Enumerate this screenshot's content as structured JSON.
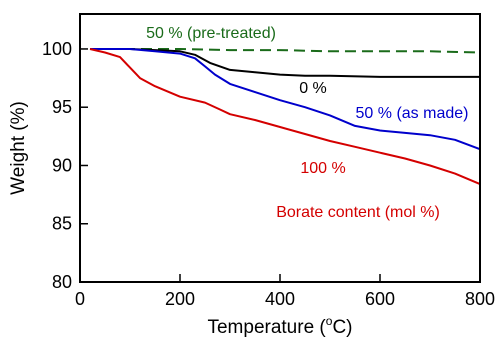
{
  "chart_data": {
    "type": "line",
    "xlabel": "Temperature (°C)",
    "xlabel_parts": {
      "main": "Temperature (",
      "sup": "o",
      "unit": "C)"
    },
    "ylabel": "Weight (%)",
    "xlim": [
      0,
      800
    ],
    "ylim": [
      80,
      103
    ],
    "xticks": [
      0,
      200,
      400,
      600,
      800
    ],
    "yticks": [
      80,
      85,
      90,
      95,
      100
    ],
    "grid": false,
    "legend": "none",
    "annotations": [
      {
        "text": "Borate content (mol %)",
        "color": "#d40000"
      }
    ],
    "series": [
      {
        "name": "50 % (pre-treated)",
        "color": "#1a6b1a",
        "style": "dashed",
        "x": [
          20,
          100,
          200,
          300,
          400,
          500,
          600,
          700,
          800
        ],
        "y": [
          100.0,
          100.0,
          100.0,
          99.9,
          99.9,
          99.8,
          99.8,
          99.8,
          99.7
        ]
      },
      {
        "name": "0 %",
        "color": "#000000",
        "style": "solid",
        "x": [
          20,
          100,
          150,
          200,
          230,
          260,
          300,
          350,
          400,
          450,
          500,
          600,
          700,
          800
        ],
        "y": [
          100.0,
          100.0,
          99.9,
          99.8,
          99.5,
          98.8,
          98.2,
          98.0,
          97.8,
          97.7,
          97.7,
          97.6,
          97.6,
          97.6
        ]
      },
      {
        "name": "50 % (as made)",
        "color": "#0000cc",
        "style": "solid",
        "x": [
          20,
          100,
          150,
          200,
          230,
          250,
          270,
          300,
          350,
          400,
          450,
          500,
          550,
          600,
          650,
          700,
          750,
          800
        ],
        "y": [
          100.0,
          100.0,
          99.8,
          99.6,
          99.2,
          98.5,
          97.8,
          97.0,
          96.3,
          95.6,
          95.0,
          94.3,
          93.4,
          93.0,
          92.8,
          92.6,
          92.2,
          91.4
        ]
      },
      {
        "name": "100 %",
        "color": "#d40000",
        "style": "solid",
        "x": [
          20,
          50,
          80,
          100,
          120,
          150,
          200,
          250,
          280,
          300,
          350,
          400,
          450,
          500,
          550,
          600,
          650,
          700,
          750,
          800
        ],
        "y": [
          100.0,
          99.7,
          99.3,
          98.4,
          97.5,
          96.8,
          95.9,
          95.4,
          94.8,
          94.4,
          93.9,
          93.3,
          92.7,
          92.1,
          91.6,
          91.1,
          90.6,
          90.0,
          89.3,
          88.4
        ]
      }
    ]
  }
}
